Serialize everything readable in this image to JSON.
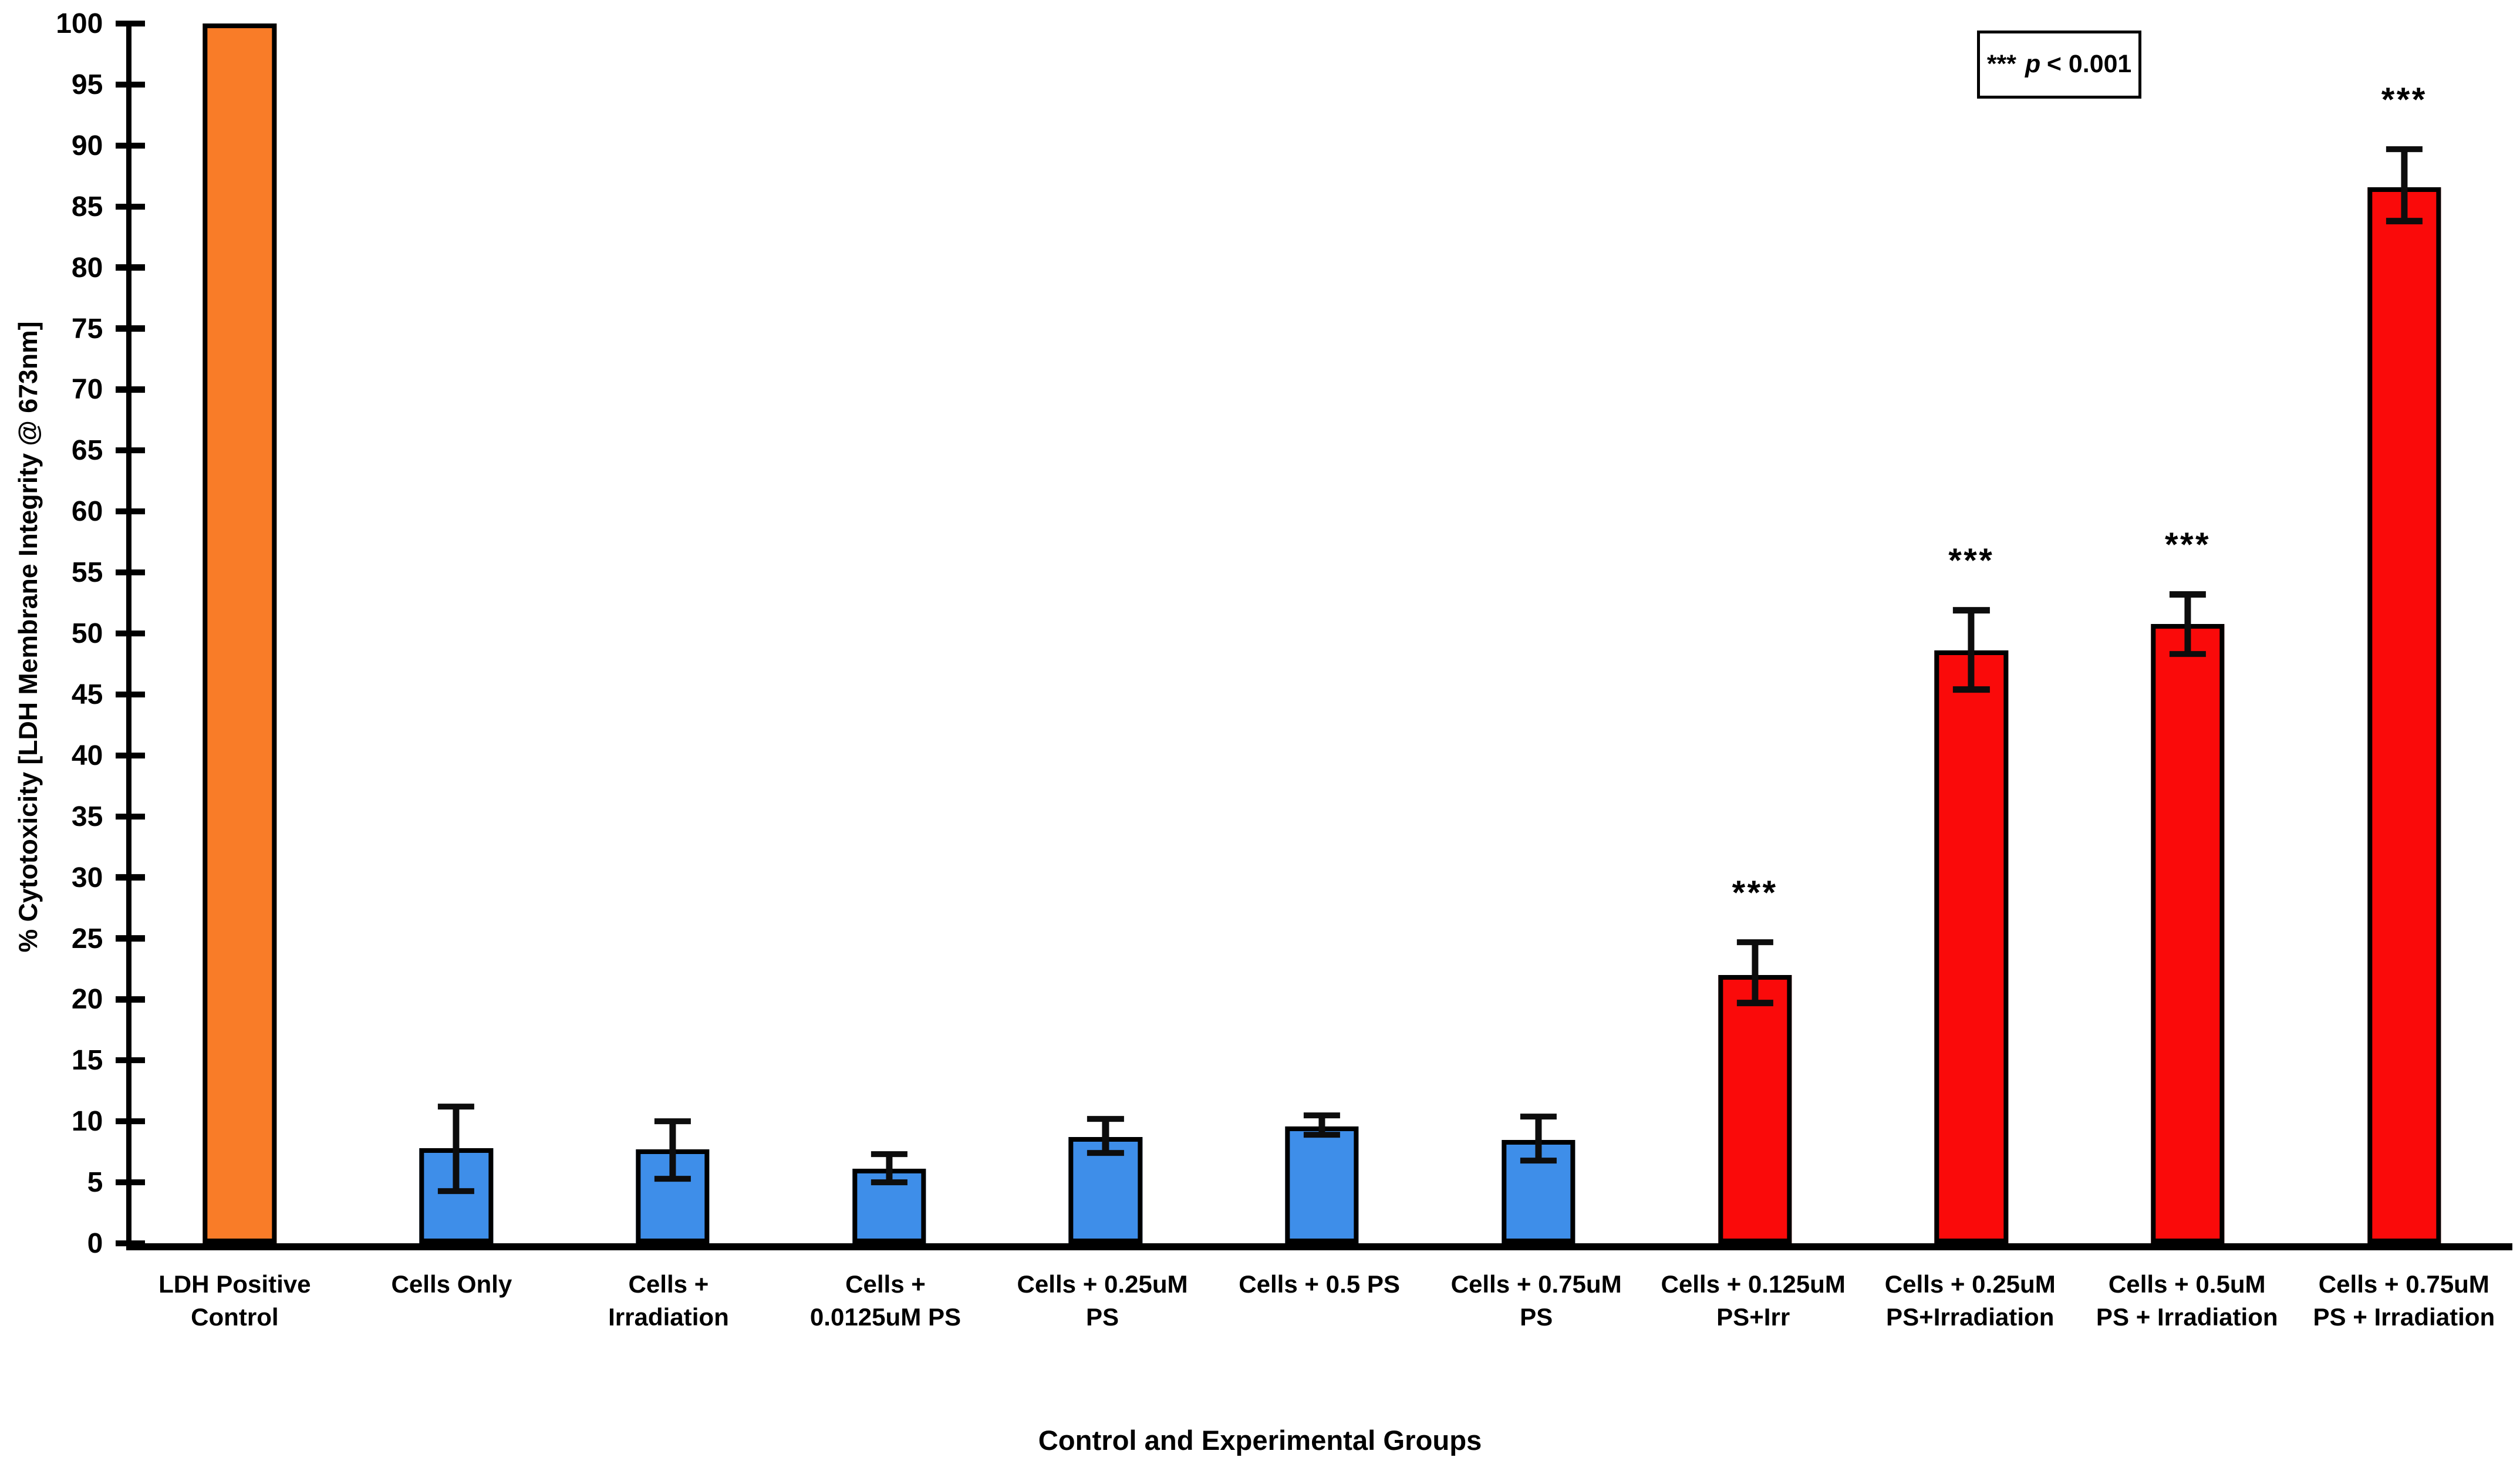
{
  "legend": {
    "stars": "***",
    "p_symbol": "p",
    "condition": "< 0.001"
  },
  "chart_data": {
    "type": "bar",
    "title": "",
    "xlabel": "Control and Experimental Groups",
    "ylabel": "% Cytotoxicity [LDH Membrane Integrity @ 673nm]",
    "ylim": [
      0,
      100
    ],
    "yticks": [
      0,
      5,
      10,
      15,
      20,
      25,
      30,
      35,
      40,
      45,
      50,
      55,
      60,
      65,
      70,
      75,
      80,
      85,
      90,
      95,
      100
    ],
    "grid": false,
    "legend_position": "top-right",
    "categories": [
      "LDH Positive Control",
      "Cells Only",
      "Cells + Irradiation",
      "Cells + 0.0125uM PS",
      "Cells + 0.25uM PS",
      "Cells + 0.5 PS",
      "Cells + 0.75uM PS",
      "Cells + 0.125uM PS+Irr",
      "Cells + 0.25uM PS+Irradiation",
      "Cells + 0.5uM PS + Irradiation",
      "Cells + 0.75uM PS + Irradiation"
    ],
    "values": [
      100,
      7.8,
      7.7,
      6.1,
      8.7,
      9.6,
      8.5,
      22.0,
      48.6,
      50.8,
      86.6
    ],
    "error_low": [
      null,
      4.3,
      5.3,
      5.0,
      7.4,
      8.9,
      6.8,
      19.7,
      45.4,
      48.3,
      83.8
    ],
    "error_high": [
      null,
      11.2,
      10.0,
      7.3,
      10.2,
      10.5,
      10.4,
      24.7,
      51.9,
      53.2,
      89.7
    ],
    "significance": [
      "",
      "",
      "",
      "",
      "",
      "",
      "",
      "***",
      "***",
      "***",
      "***"
    ],
    "bar_colors": [
      "#F97C28",
      "#3E8EE9",
      "#3E8EE9",
      "#3E8EE9",
      "#3E8EE9",
      "#3E8EE9",
      "#3E8EE9",
      "#FA0A0A",
      "#FA0A0A",
      "#FA0A0A",
      "#FA0A0A"
    ],
    "bar_border_color": "#000000"
  }
}
